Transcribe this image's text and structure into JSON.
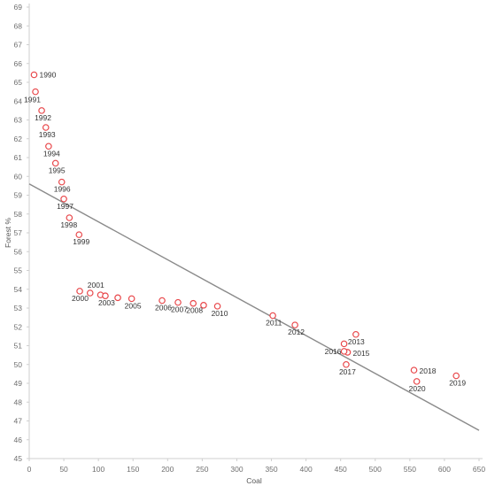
{
  "chart_data": {
    "type": "scatter",
    "title": "",
    "xlabel": "Coal",
    "ylabel": "Forest %",
    "xlim": [
      0,
      650
    ],
    "ylim": [
      45,
      69
    ],
    "x_ticks": [
      0,
      50,
      100,
      150,
      200,
      250,
      300,
      350,
      400,
      450,
      500,
      550,
      600,
      650
    ],
    "y_ticks": [
      45,
      46,
      47,
      48,
      49,
      50,
      51,
      52,
      53,
      54,
      55,
      56,
      57,
      58,
      59,
      60,
      61,
      62,
      63,
      64,
      65,
      66,
      67,
      68,
      69
    ],
    "grid": {
      "x": false,
      "y": false
    },
    "colors": {
      "points": "#e8474a",
      "trend_line": "#8a8a8a",
      "axis": "#cfcfcf",
      "tick_text": "#6f6f6f",
      "label_text": "#333333"
    },
    "trend_line": {
      "x": [
        0,
        650
      ],
      "y": [
        59.6,
        46.5
      ]
    },
    "points": [
      {
        "label": "1990",
        "x": 7,
        "y": 65.4
      },
      {
        "label": "1991",
        "x": 9,
        "y": 64.5
      },
      {
        "label": "1992",
        "x": 18,
        "y": 63.5
      },
      {
        "label": "1993",
        "x": 24,
        "y": 62.6
      },
      {
        "label": "1994",
        "x": 28,
        "y": 61.6
      },
      {
        "label": "1995",
        "x": 38,
        "y": 60.7
      },
      {
        "label": "1996",
        "x": 47,
        "y": 59.7
      },
      {
        "label": "1997",
        "x": 50,
        "y": 58.8
      },
      {
        "label": "1998",
        "x": 58,
        "y": 57.8
      },
      {
        "label": "1999",
        "x": 72,
        "y": 56.9
      },
      {
        "label": "2000",
        "x": 73,
        "y": 53.9
      },
      {
        "label": "2001",
        "x": 88,
        "y": 53.8
      },
      {
        "label": "2002",
        "x": 103,
        "y": 53.7
      },
      {
        "label": "2003",
        "x": 110,
        "y": 53.65
      },
      {
        "label": "2004",
        "x": 128,
        "y": 53.55
      },
      {
        "label": "2005",
        "x": 148,
        "y": 53.5
      },
      {
        "label": "2006",
        "x": 192,
        "y": 53.4
      },
      {
        "label": "2007",
        "x": 215,
        "y": 53.3
      },
      {
        "label": "2008",
        "x": 237,
        "y": 53.25
      },
      {
        "label": "2009",
        "x": 252,
        "y": 53.15
      },
      {
        "label": "2010",
        "x": 272,
        "y": 53.1
      },
      {
        "label": "2011",
        "x": 352,
        "y": 52.6
      },
      {
        "label": "2012",
        "x": 384,
        "y": 52.1
      },
      {
        "label": "2013",
        "x": 472,
        "y": 51.6
      },
      {
        "label": "2014",
        "x": 455,
        "y": 51.1
      },
      {
        "label": "2015",
        "x": 460,
        "y": 50.65
      },
      {
        "label": "2016",
        "x": 455,
        "y": 50.7
      },
      {
        "label": "2017",
        "x": 458,
        "y": 50.0
      },
      {
        "label": "2018",
        "x": 556,
        "y": 49.7
      },
      {
        "label": "2019",
        "x": 617,
        "y": 49.4
      },
      {
        "label": "2020",
        "x": 560,
        "y": 49.1
      }
    ]
  }
}
